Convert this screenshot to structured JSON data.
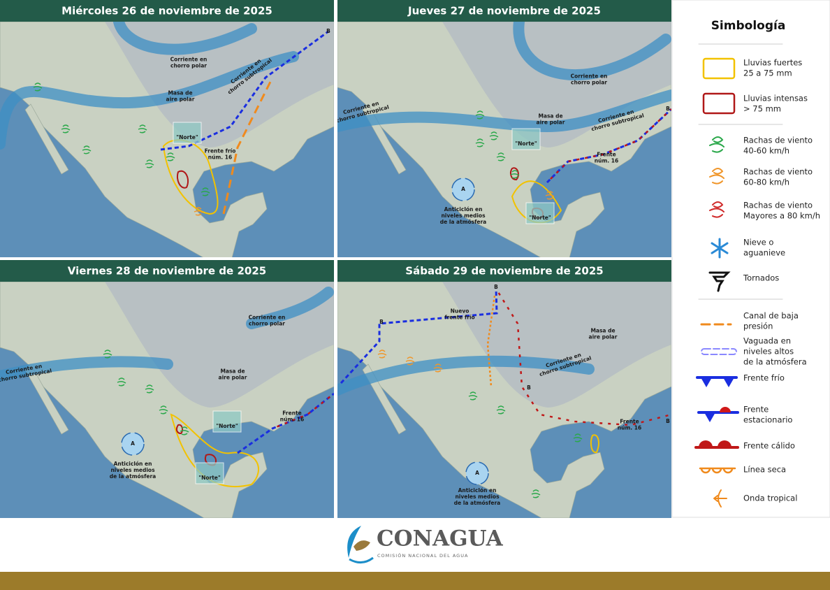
{
  "panels": [
    {
      "title": "Miércoles 26 de noviembre de 2025",
      "labels": [
        [
          "Corriente en",
          "chorro polar"
        ],
        [
          "Corriente en",
          "chorro subtropical"
        ],
        [
          "Masa de",
          "aire polar"
        ],
        [
          "\"Norte\""
        ],
        [
          "Frente frío",
          "núm. 16"
        ],
        [
          "B"
        ]
      ]
    },
    {
      "title": "Jueves 27 de noviembre de 2025",
      "labels": [
        [
          "Corriente en",
          "chorro subtropical"
        ],
        [
          "Corriente en",
          "chorro polar"
        ],
        [
          "Masa de",
          "aire polar"
        ],
        [
          "Corriente en",
          "chorro subtropical"
        ],
        [
          "\"Norte\""
        ],
        [
          "Frente",
          "núm. 16"
        ],
        [
          "\"Norte\""
        ],
        [
          "Anticiclón en",
          "niveles medios",
          "de la atmósfera"
        ],
        [
          "A"
        ],
        [
          "B"
        ]
      ]
    },
    {
      "title": "Viernes 28 de noviembre de 2025",
      "labels": [
        [
          "Corriente en",
          "chorro polar"
        ],
        [
          "Corriente en",
          "chorro subtropical"
        ],
        [
          "Masa de",
          "aire polar"
        ],
        [
          "\"Norte\""
        ],
        [
          "Frente",
          "núm. 16"
        ],
        [
          "Anticiclón en",
          "niveles medios",
          "de la atmósfera"
        ],
        [
          "A"
        ],
        [
          "\"Norte\""
        ]
      ]
    },
    {
      "title": "Sábado 29 de noviembre de 2025",
      "labels": [
        [
          "Nuevo",
          "frente frío"
        ],
        [
          "B"
        ],
        [
          "B"
        ],
        [
          "B"
        ],
        [
          "B"
        ],
        [
          "Masa de",
          "aire polar"
        ],
        [
          "Corriente en",
          "chorro subtropical"
        ],
        [
          "Frente",
          "núm. 16"
        ],
        [
          "Anticiclón en",
          "niveles medios",
          "de la atmósfera"
        ],
        [
          "A"
        ]
      ]
    }
  ],
  "legend": {
    "title": "Simbología",
    "items": [
      {
        "lines": [
          "Lluvias fuertes",
          "25 a 75 mm"
        ]
      },
      {
        "lines": [
          "Lluvias intensas",
          "> 75 mm"
        ]
      },
      {
        "lines": [
          "Rachas de viento",
          "40-60 km/h"
        ]
      },
      {
        "lines": [
          "Rachas de viento",
          "60-80 km/h"
        ]
      },
      {
        "lines": [
          "Rachas de viento",
          "Mayores a 80 km/h"
        ]
      },
      {
        "lines": [
          "Nieve o",
          "aguanieve"
        ]
      },
      {
        "lines": [
          "Tornados"
        ]
      },
      {
        "lines": [
          "Canal de baja",
          "presión"
        ]
      },
      {
        "lines": [
          "Vaguada en",
          "niveles altos",
          "de la atmósfera"
        ]
      },
      {
        "lines": [
          "Frente frío"
        ]
      },
      {
        "lines": [
          "Frente",
          "estacionario"
        ]
      },
      {
        "lines": [
          "Frente cálido"
        ]
      },
      {
        "lines": [
          "Línea seca"
        ]
      },
      {
        "lines": [
          "Onda tropical"
        ]
      }
    ]
  },
  "footer": {
    "brand": "CONAGUA",
    "subtitle": "COMISIÓN NACIONAL DEL AGUA"
  }
}
